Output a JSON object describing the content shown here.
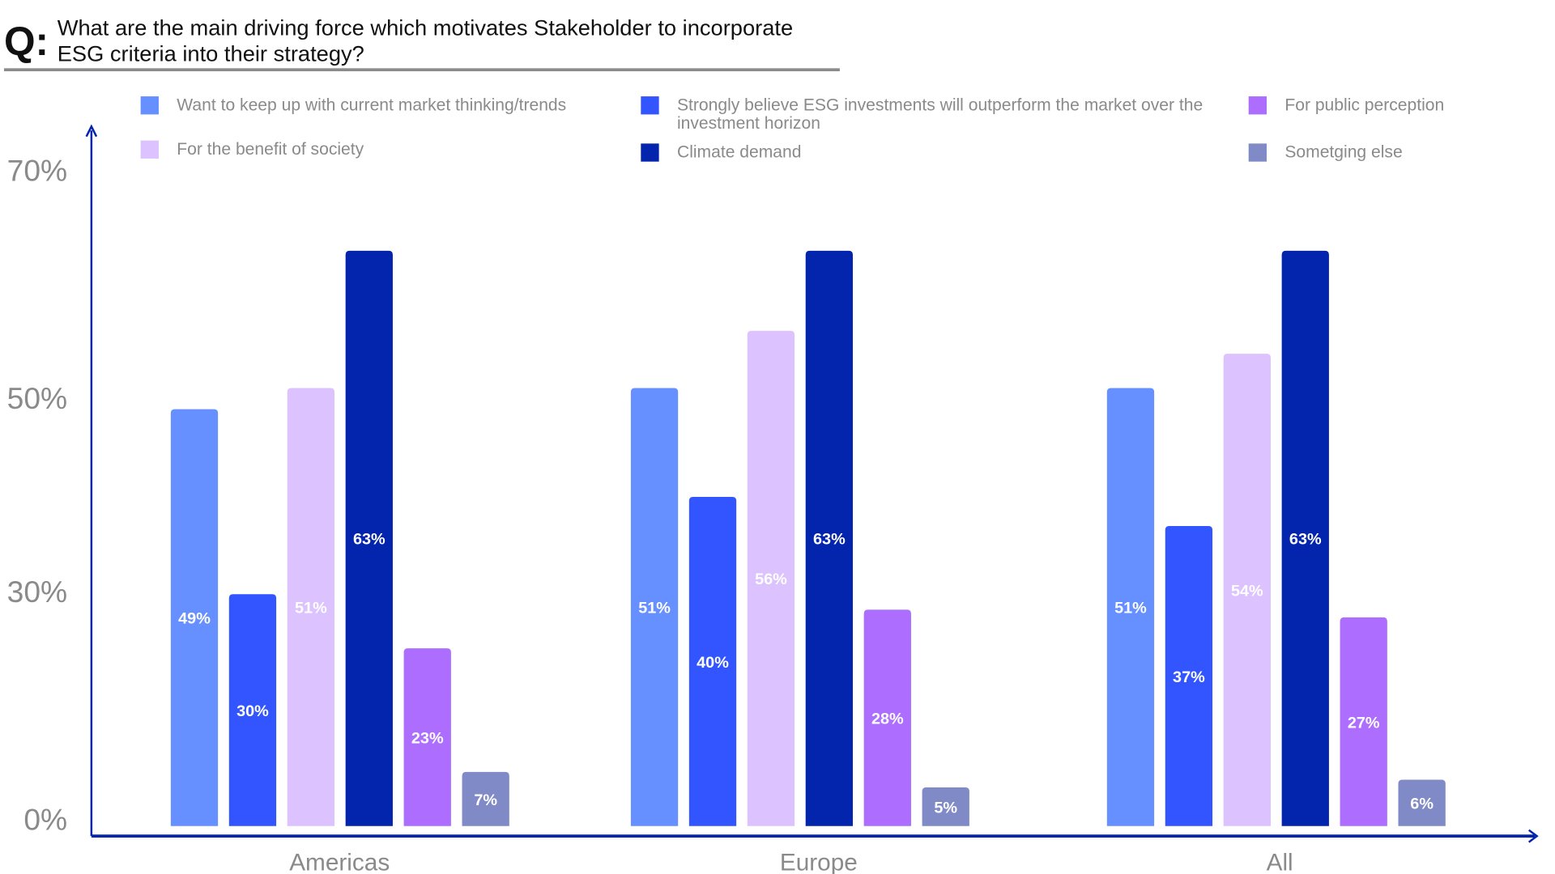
{
  "question_mark": "Q:",
  "title": "What are the main driving force which motivates Stakeholder to incorporate ESG criteria into their strategy?",
  "chart_data": {
    "type": "bar",
    "title": "What are the main driving force which motivates Stakeholder to incorporate ESG criteria into their strategy?",
    "categories": [
      "Americas",
      "Europe",
      "All"
    ],
    "y_tick_labels": [
      "0%",
      "30%",
      "50%",
      "70%"
    ],
    "y_ticks": [
      0,
      30,
      50,
      70
    ],
    "ylim": [
      0,
      70
    ],
    "grid": false,
    "legend_position": "top",
    "series": [
      {
        "name": "Want to keep up with current market thinking/trends",
        "color": "#6690FF",
        "values": [
          49,
          51,
          51
        ],
        "labels": [
          "49%",
          "51%",
          "51%"
        ]
      },
      {
        "name": "Strongly believe ESG investments will outperform the market over the investment horizon",
        "color": "#3355FF",
        "values": [
          30,
          40,
          37
        ],
        "labels": [
          "30%",
          "40%",
          "37%"
        ]
      },
      {
        "name": "For the benefit of society",
        "color": "#DCC2FF",
        "values": [
          51,
          56,
          54
        ],
        "labels": [
          "51%",
          "56%",
          "54%"
        ]
      },
      {
        "name": "Climate demand",
        "color": "#0324AD",
        "values": [
          63,
          63,
          63
        ],
        "labels": [
          "63%",
          "63%",
          "63%"
        ]
      },
      {
        "name": "For public perception",
        "color": "#AD6DFF",
        "values": [
          23,
          28,
          27
        ],
        "labels": [
          "23%",
          "28%",
          "27%"
        ]
      },
      {
        "name": "Sometging else",
        "color": "#7F8AC7",
        "values": [
          7,
          5,
          6
        ],
        "labels": [
          "7%",
          "5%",
          "6%"
        ]
      }
    ],
    "axis_color": "#0324AD"
  }
}
